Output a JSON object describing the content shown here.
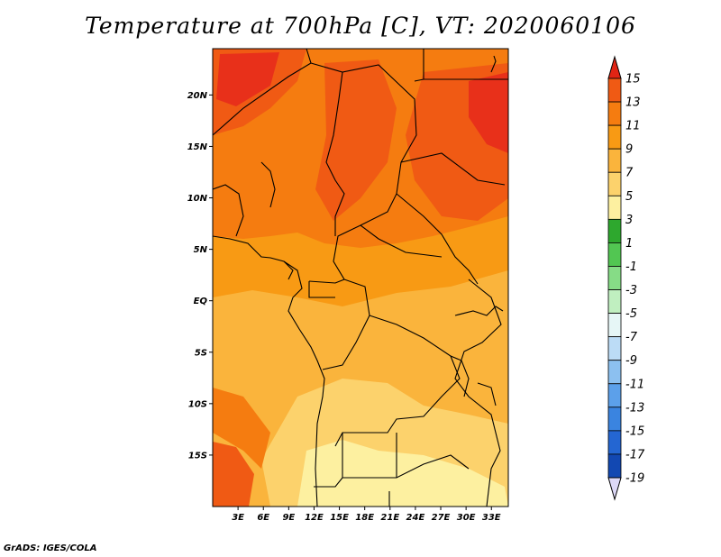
{
  "title": "Temperature at 700hPa [C], VT: 2020060106",
  "credit": "GrADS: IGES/COLA",
  "map": {
    "lon_range": [
      0,
      35
    ],
    "lat_range": [
      -20,
      24.5
    ],
    "lat_ticks": [
      {
        "value": 20,
        "label": "20N"
      },
      {
        "value": 15,
        "label": "15N"
      },
      {
        "value": 10,
        "label": "10N"
      },
      {
        "value": 5,
        "label": "5N"
      },
      {
        "value": 0,
        "label": "EQ"
      },
      {
        "value": -5,
        "label": "5S"
      },
      {
        "value": -10,
        "label": "10S"
      },
      {
        "value": -15,
        "label": "15S"
      }
    ],
    "lon_ticks": [
      {
        "value": 3,
        "label": "3E"
      },
      {
        "value": 6,
        "label": "6E"
      },
      {
        "value": 9,
        "label": "9E"
      },
      {
        "value": 12,
        "label": "12E"
      },
      {
        "value": 15,
        "label": "15E"
      },
      {
        "value": 18,
        "label": "18E"
      },
      {
        "value": 21,
        "label": "21E"
      },
      {
        "value": 24,
        "label": "24E"
      },
      {
        "value": 27,
        "label": "27E"
      },
      {
        "value": 30,
        "label": "30E"
      },
      {
        "value": 33,
        "label": "33E"
      }
    ]
  },
  "colorbar": {
    "levels": [
      15,
      13,
      11,
      9,
      7,
      5,
      3,
      1,
      -1,
      -3,
      -5,
      -7,
      -9,
      -11,
      -13,
      -15,
      -17,
      -19
    ],
    "colors": [
      "#e8301a",
      "#f05a14",
      "#f57c10",
      "#f89a14",
      "#fab43c",
      "#fcd26c",
      "#fdf0a0",
      "#2ea82e",
      "#52c652",
      "#86dc86",
      "#c0efc0",
      "#e6f6f6",
      "#bcdcf6",
      "#8cc0f0",
      "#5ca0ea",
      "#3a84e0",
      "#2466d2",
      "#1248b2",
      "#0c2c8c",
      "#060a5c"
    ],
    "top_arrow_color": "#e12414",
    "bottom_arrow_color": "#dcd8f6"
  }
}
